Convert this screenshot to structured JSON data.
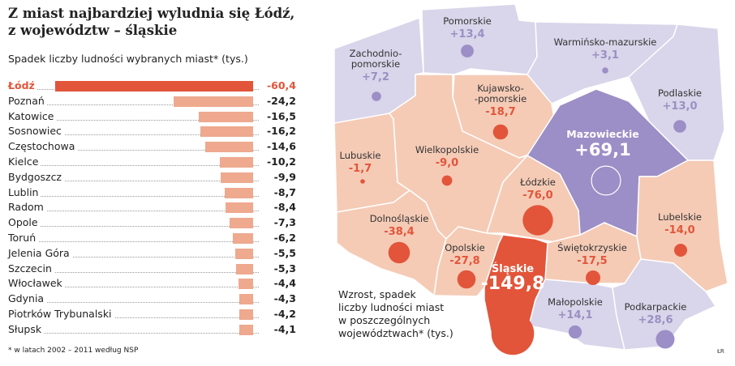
{
  "title_line1": "Z miast najbardziej wyludnia się Łódź,",
  "title_line2": "z województw – śląskie",
  "footnote": "* w latach 2002 – 2011 według NSP",
  "credit": "ŁR",
  "colors": {
    "highlight": "#e2553a",
    "bar": "#eea98f",
    "loss_region": "#f5cbb6",
    "gain_region": "#d9d5ea",
    "mazowieckie": "#9c8ec6",
    "gain_circle": "#9c8ec6",
    "gain_text": "#9a90c2"
  },
  "chart_data": [
    {
      "type": "bar",
      "orientation": "horizontal",
      "title": "Spadek liczby ludności wybranych miast* (tys.)",
      "categories": [
        "Łódź",
        "Poznań",
        "Katowice",
        "Sosnowiec",
        "Częstochowa",
        "Kielce",
        "Bydgoszcz",
        "Lublin",
        "Radom",
        "Opole",
        "Toruń",
        "Jelenia Góra",
        "Szczecin",
        "Włocławek",
        "Gdynia",
        "Piotrków Trybunalski",
        "Słupsk"
      ],
      "values": [
        -60.4,
        -24.2,
        -16.5,
        -16.2,
        -14.6,
        -10.2,
        -9.9,
        -8.7,
        -8.4,
        -7.3,
        -6.2,
        -5.5,
        -5.3,
        -4.4,
        -4.3,
        -4.2,
        -4.1
      ],
      "labels": [
        "-60,4",
        "-24,2",
        "-16,5",
        "-16,2",
        "-14,6",
        "-10,2",
        "-9,9",
        "-8,7",
        "-8,4",
        "-7,3",
        "-6,2",
        "-5,5",
        "-5,3",
        "-4,4",
        "-4,3",
        "-4,2",
        "-4,1"
      ],
      "highlight": "Łódź"
    },
    {
      "type": "map",
      "title": "Wzrost, spadek liczby ludności miast w poszczególnych województwach* (tys.)",
      "legend_lines": [
        "Wzrost, spadek",
        "liczby ludności miast",
        "w poszczególnych",
        "województwach* (tys.)"
      ],
      "regions": [
        {
          "name": "Zachodnio-pomorskie",
          "lines": [
            "Zachodnio-",
            "pomorskie"
          ],
          "value": 7.2,
          "label": "+7,2"
        },
        {
          "name": "Pomorskie",
          "lines": [
            "Pomorskie"
          ],
          "value": 13.4,
          "label": "+13,4"
        },
        {
          "name": "Warmińsko-mazurskie",
          "lines": [
            "Warmińsko-mazurskie"
          ],
          "value": 3.1,
          "label": "+3,1"
        },
        {
          "name": "Podlaskie",
          "lines": [
            "Podlaskie"
          ],
          "value": 13.0,
          "label": "+13,0"
        },
        {
          "name": "Kujawsko-pomorskie",
          "lines": [
            "Kujawsko-",
            "-pomorskie"
          ],
          "value": -18.7,
          "label": "-18,7"
        },
        {
          "name": "Mazowieckie",
          "lines": [
            "Mazowieckie"
          ],
          "value": 69.1,
          "label": "+69,1"
        },
        {
          "name": "Lubuskie",
          "lines": [
            "Lubuskie"
          ],
          "value": -1.7,
          "label": "-1,7"
        },
        {
          "name": "Wielkopolskie",
          "lines": [
            "Wielkopolskie"
          ],
          "value": -9.0,
          "label": "-9,0"
        },
        {
          "name": "Łódzkie",
          "lines": [
            "Łódzkie"
          ],
          "value": -76.0,
          "label": "-76,0"
        },
        {
          "name": "Lubelskie",
          "lines": [
            "Lubelskie"
          ],
          "value": -14.0,
          "label": "-14,0"
        },
        {
          "name": "Dolnośląskie",
          "lines": [
            "Dolnośląskie"
          ],
          "value": -38.4,
          "label": "-38,4"
        },
        {
          "name": "Opolskie",
          "lines": [
            "Opolskie"
          ],
          "value": -27.8,
          "label": "-27,8"
        },
        {
          "name": "Śląskie",
          "lines": [
            "Śląskie"
          ],
          "value": -149.8,
          "label": "-149,8"
        },
        {
          "name": "Świętokrzyskie",
          "lines": [
            "Świętokrzyskie"
          ],
          "value": -17.5,
          "label": "-17,5"
        },
        {
          "name": "Małopolskie",
          "lines": [
            "Małopolskie"
          ],
          "value": 14.1,
          "label": "+14,1"
        },
        {
          "name": "Podkarpackie",
          "lines": [
            "Podkarpackie"
          ],
          "value": 28.6,
          "label": "+28,6"
        }
      ]
    }
  ]
}
